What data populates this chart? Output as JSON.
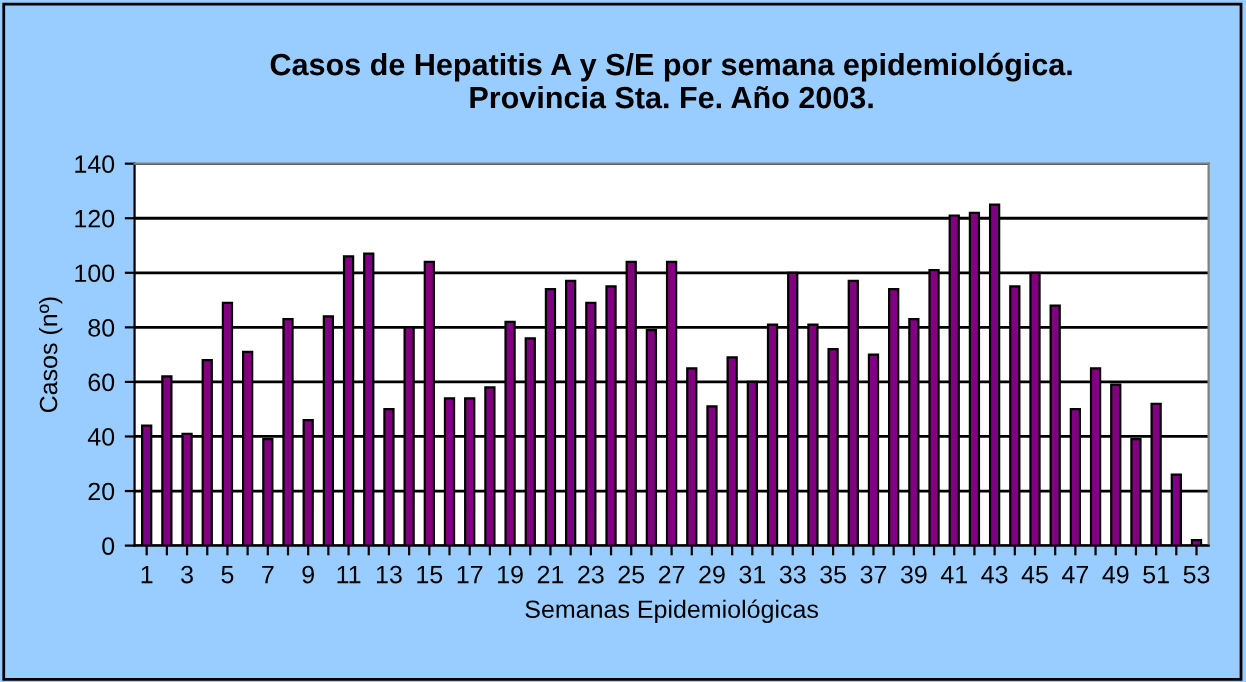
{
  "chart_data": {
    "type": "bar",
    "title": "Casos de Hepatitis A y S/E por semana epidemiológica.\nProvincia Sta. Fe. Año 2003.",
    "xlabel": "Semanas Epidemiológicas",
    "ylabel": "Casos (nº)",
    "categories": [
      "1",
      null,
      "3",
      null,
      "5",
      null,
      "7",
      null,
      "9",
      null,
      "11",
      null,
      "13",
      null,
      "15",
      null,
      "17",
      null,
      "19",
      null,
      "21",
      null,
      "23",
      null,
      "25",
      null,
      "27",
      null,
      "29",
      null,
      "31",
      null,
      "33",
      null,
      "35",
      null,
      "37",
      null,
      "39",
      null,
      "41",
      null,
      "43",
      null,
      "45",
      null,
      "47",
      null,
      "49",
      null,
      "51",
      null,
      "53"
    ],
    "values": [
      44,
      62,
      41,
      68,
      89,
      71,
      39,
      83,
      46,
      84,
      106,
      107,
      50,
      80,
      104,
      54,
      54,
      58,
      82,
      76,
      94,
      97,
      89,
      95,
      104,
      79,
      104,
      65,
      51,
      69,
      60,
      81,
      100,
      81,
      72,
      97,
      70,
      94,
      83,
      101,
      121,
      122,
      125,
      95,
      100,
      88,
      50,
      65,
      59,
      39,
      52,
      26,
      2
    ],
    "color": "#800080",
    "ylim": [
      0,
      140
    ],
    "yticks": [
      0,
      20,
      40,
      60,
      80,
      100,
      120,
      140
    ],
    "grid": "y",
    "legend": false
  }
}
